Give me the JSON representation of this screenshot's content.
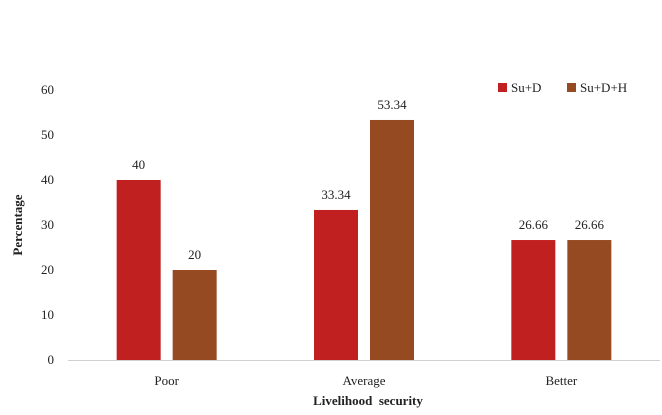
{
  "chart_data": {
    "type": "bar",
    "categories": [
      "Poor",
      "Average",
      "Better"
    ],
    "series": [
      {
        "name": "Su+D",
        "values": [
          40,
          33.34,
          26.66
        ],
        "labels": [
          "40",
          "33.34",
          "26.66"
        ],
        "color": "#c0201f"
      },
      {
        "name": "Su+D+H",
        "values": [
          20,
          53.34,
          26.66
        ],
        "labels": [
          "20",
          "53.34",
          "26.66"
        ],
        "color": "#954a22"
      }
    ],
    "title": "",
    "xlabel": "Livelihood  security",
    "ylabel": "Percentage",
    "ylim": [
      0,
      60
    ],
    "yticks": [
      0,
      10,
      20,
      30,
      40,
      50,
      60
    ],
    "grid": false,
    "legend_position": "top-right"
  }
}
